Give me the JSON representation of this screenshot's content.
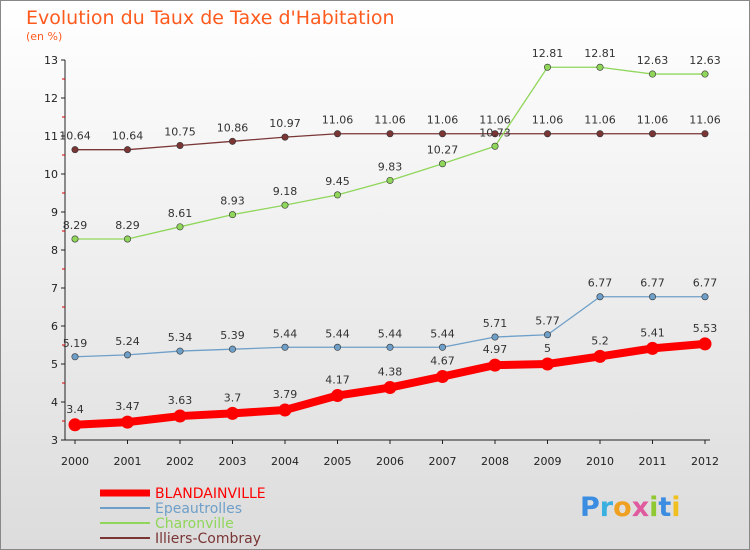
{
  "chart_data": {
    "type": "line",
    "title": "Evolution du Taux de Taxe d'Habitation",
    "subtitle": "(en %)",
    "x": [
      "2000",
      "2001",
      "2002",
      "2003",
      "2004",
      "2005",
      "2006",
      "2007",
      "2008",
      "2009",
      "2010",
      "2011",
      "2012"
    ],
    "ylim": [
      3,
      13
    ],
    "yticks": [
      "3",
      "4",
      "5",
      "6",
      "7",
      "8",
      "9",
      "10",
      "11",
      "12",
      "13"
    ],
    "grid": false,
    "legend_position": "bottom-left",
    "series": [
      {
        "name": "BLANDAINVILLE",
        "color": "#ff0000",
        "values": [
          3.4,
          3.47,
          3.63,
          3.7,
          3.79,
          4.17,
          4.38,
          4.67,
          4.97,
          5,
          5.2,
          5.41,
          5.53
        ],
        "labels": [
          "3.4",
          "3.47",
          "3.63",
          "3.7",
          "3.79",
          "4.17",
          "4.38",
          "4.67",
          "4.97",
          "5",
          "5.2",
          "5.41",
          "5.53"
        ]
      },
      {
        "name": "Epeautrolles",
        "color": "#6e9fc8",
        "values": [
          5.19,
          5.24,
          5.34,
          5.39,
          5.44,
          5.44,
          5.44,
          5.44,
          5.71,
          5.77,
          6.77,
          6.77,
          6.77
        ],
        "labels": [
          "5.19",
          "5.24",
          "5.34",
          "5.39",
          "5.44",
          "5.44",
          "5.44",
          "5.44",
          "5.71",
          "5.77",
          "6.77",
          "6.77",
          "6.77"
        ]
      },
      {
        "name": "Charonville",
        "color": "#8fd65a",
        "values": [
          8.29,
          8.29,
          8.61,
          8.93,
          9.18,
          9.45,
          9.83,
          10.27,
          10.73,
          12.81,
          12.81,
          12.63,
          12.63
        ],
        "labels": [
          "8.29",
          "8.29",
          "8.61",
          "8.93",
          "9.18",
          "9.45",
          "9.83",
          "10.27",
          "10.73",
          "12.81",
          "12.81",
          "12.63",
          "12.63"
        ]
      },
      {
        "name": "Illiers-Combray",
        "color": "#7a3535",
        "values": [
          10.64,
          10.64,
          10.75,
          10.86,
          10.97,
          11.06,
          11.06,
          11.06,
          11.06,
          11.06,
          11.06,
          11.06,
          11.06
        ],
        "labels": [
          "10.64",
          "10.64",
          "10.75",
          "10.86",
          "10.97",
          "11.06",
          "11.06",
          "11.06",
          "11.06",
          "11.06",
          "11.06",
          "11.06",
          "11.06"
        ]
      }
    ]
  },
  "logo": {
    "text": "Proxiti"
  },
  "colors": {
    "title": "#ff5a1e",
    "background_top": "#ffffff",
    "background_bottom": "#dcdcdc",
    "axis": "#222222"
  }
}
